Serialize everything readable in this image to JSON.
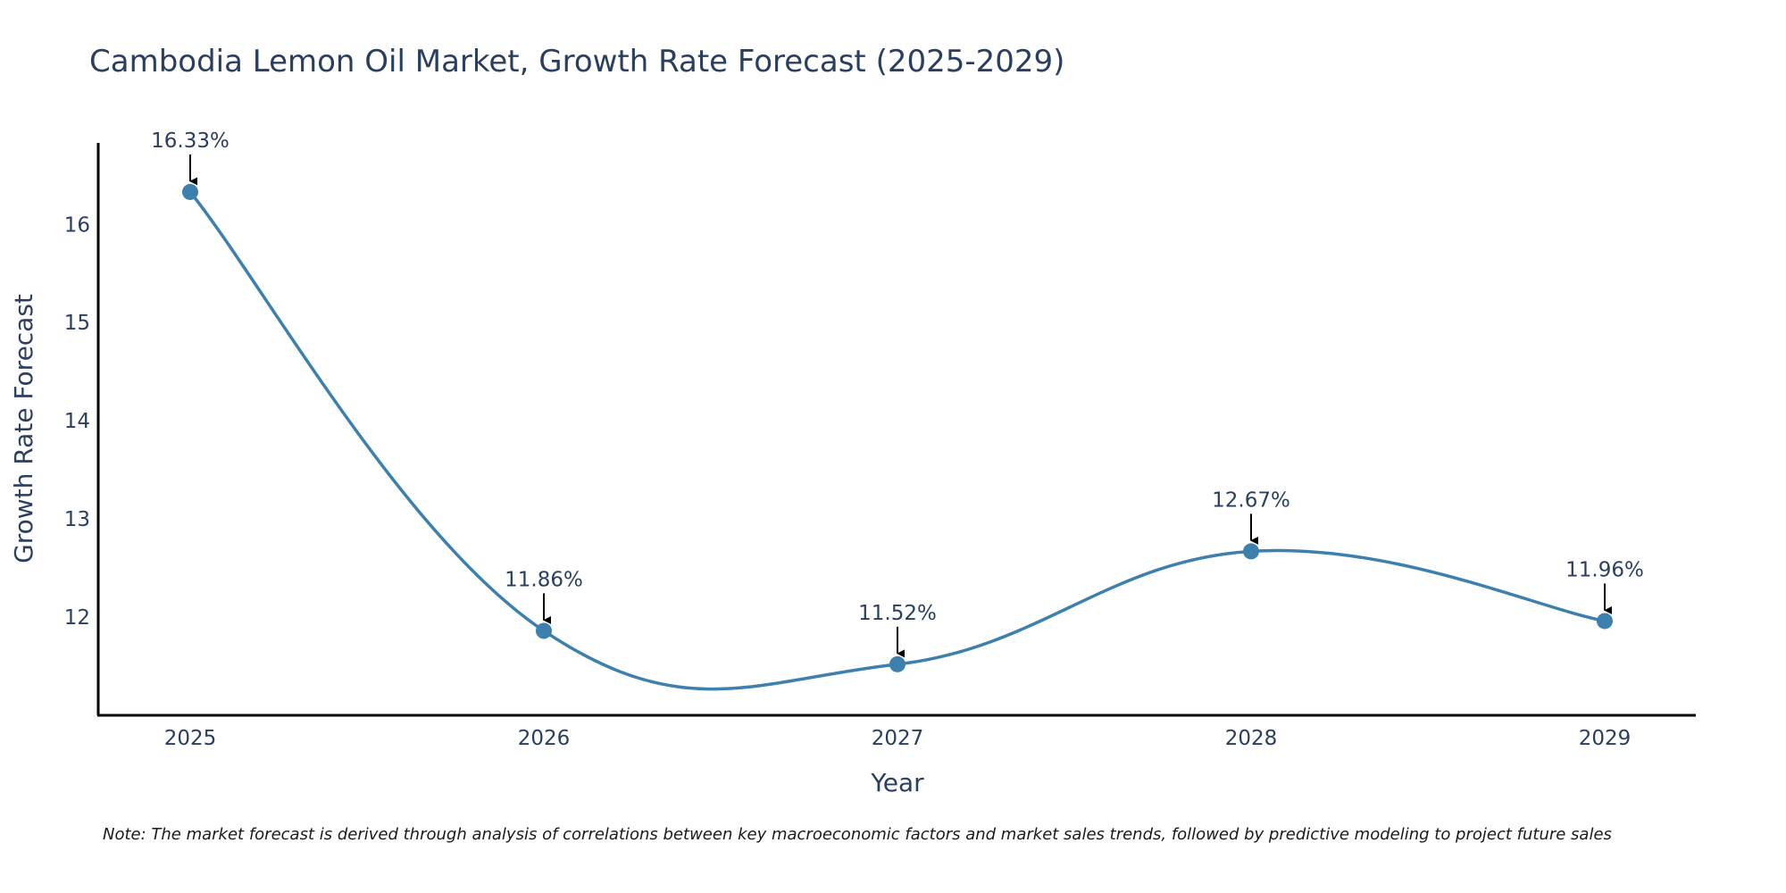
{
  "chart_data": {
    "type": "line",
    "title": "Cambodia Lemon Oil Market, Growth Rate Forecast (2025-2029)",
    "xlabel": "Year",
    "ylabel": "Growth Rate Forecast",
    "categories": [
      "2025",
      "2026",
      "2027",
      "2028",
      "2029"
    ],
    "values": [
      16.33,
      11.86,
      11.52,
      12.67,
      11.96
    ],
    "data_labels": [
      "16.33%",
      "11.86%",
      "11.52%",
      "12.67%",
      "11.96%"
    ],
    "y_ticks": [
      12,
      13,
      14,
      15,
      16
    ],
    "ylim": [
      11.0,
      16.83
    ],
    "line_shape": "spline",
    "line_color": "#3d7fad",
    "marker_color": "#3d7fad",
    "annotation_arrow_color": "#000000",
    "axis_color": "#000000",
    "grid": false,
    "note": "Note: The market forecast is derived through analysis of correlations between key macroeconomic factors and market sales trends, followed by predictive modeling to project future sales"
  }
}
